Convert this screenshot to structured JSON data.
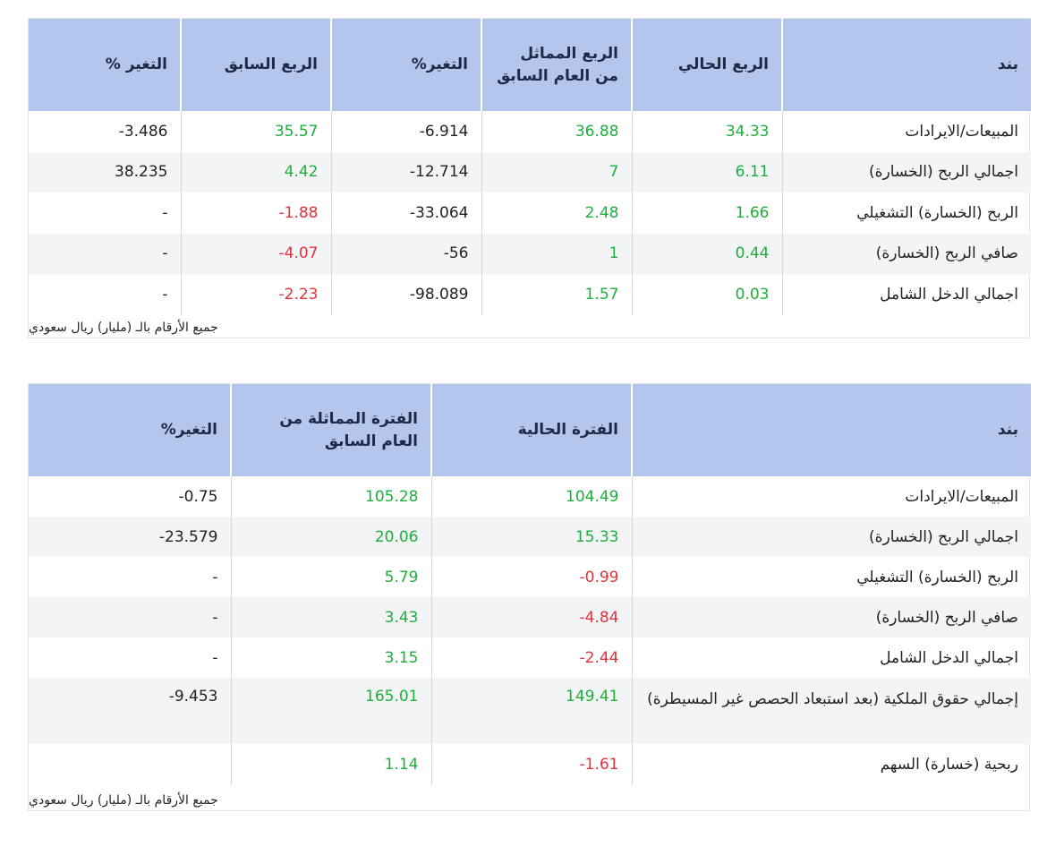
{
  "table1": {
    "headers": [
      "بند",
      "الربع الحالي",
      "الربع المماثل من العام السابق",
      "التغير%",
      "الربع السابق",
      "التغير %"
    ],
    "rows": [
      {
        "item": "المبيعات/الايرادات",
        "current": "34.33",
        "same_last_year": "36.88",
        "change_yoy": "6.914-",
        "previous": "35.57",
        "change_qoq": "3.486-"
      },
      {
        "item": "اجمالي الربح (الخسارة)",
        "current": "6.11",
        "same_last_year": "7",
        "change_yoy": "12.714-",
        "previous": "4.42",
        "change_qoq": "38.235"
      },
      {
        "item": "الربح (الخسارة) التشغيلي",
        "current": "1.66",
        "same_last_year": "2.48",
        "change_yoy": "33.064-",
        "previous": "1.88-",
        "change_qoq": "-"
      },
      {
        "item": "صافي الربح (الخسارة)",
        "current": "0.44",
        "same_last_year": "1",
        "change_yoy": "56-",
        "previous": "4.07-",
        "change_qoq": "-"
      },
      {
        "item": "اجمالي الدخل الشامل",
        "current": "0.03",
        "same_last_year": "1.57",
        "change_yoy": "98.089-",
        "previous": "2.23-",
        "change_qoq": "-"
      }
    ],
    "footnote": "جميع الأرقام بالـ (مليار) ريال سعودي"
  },
  "table2": {
    "headers": [
      "بند",
      "الفترة الحالية",
      "الفترة المماثلة من العام السابق",
      "التغير%"
    ],
    "rows": [
      {
        "item": "المبيعات/الايرادات",
        "current": "104.49",
        "same_last_year": "105.28",
        "change": "0.75-"
      },
      {
        "item": "اجمالي الربح (الخسارة)",
        "current": "15.33",
        "same_last_year": "20.06",
        "change": "23.579-"
      },
      {
        "item": "الربح (الخسارة) التشغيلي",
        "current": "0.99-",
        "same_last_year": "5.79",
        "change": "-"
      },
      {
        "item": "صافي الربح (الخسارة)",
        "current": "4.84-",
        "same_last_year": "3.43",
        "change": "-"
      },
      {
        "item": "اجمالي الدخل الشامل",
        "current": "2.44-",
        "same_last_year": "3.15",
        "change": "-"
      },
      {
        "item": "إجمالي حقوق الملكية (بعد استبعاد الحصص غير المسيطرة)",
        "current": "149.41",
        "same_last_year": "165.01",
        "change": "9.453-"
      },
      {
        "item": "ربحية (خسارة) السهم",
        "current": "1.61-",
        "same_last_year": "1.14",
        "change": ""
      }
    ],
    "footnote": "جميع الأرقام بالـ (مليار) ريال سعودي"
  },
  "colors": {
    "header_bg": "#b5c6ec",
    "positive": "#1fae3c",
    "negative": "#e0333c",
    "neutral": "#222222",
    "alt_row_bg": "#f3f4f6"
  }
}
